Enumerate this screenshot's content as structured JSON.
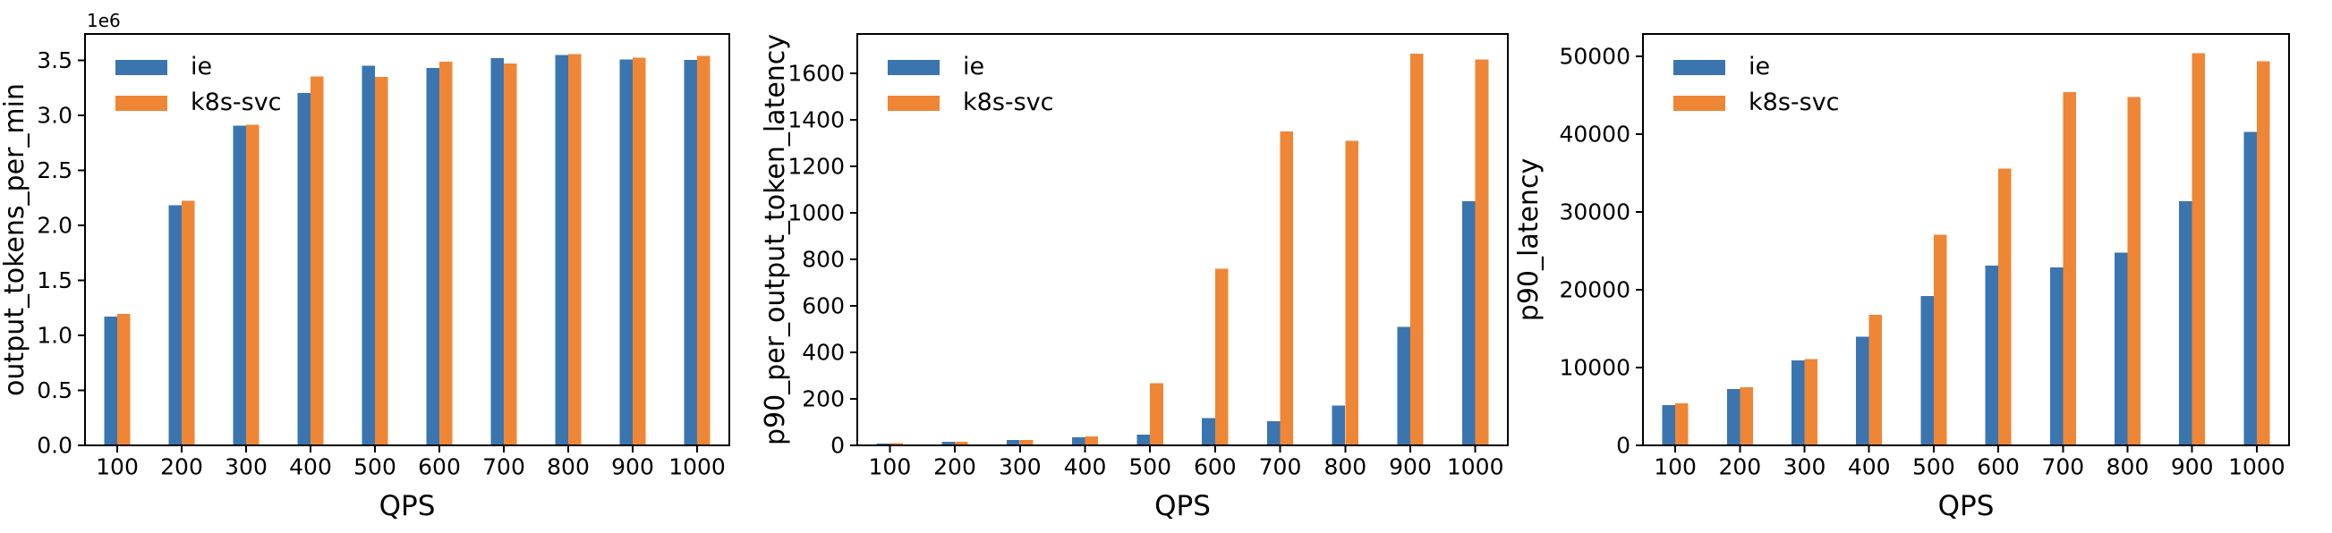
{
  "figure": {
    "background": "#ffffff",
    "text_color": "#000000",
    "spine_color": "#000000",
    "series_colors": {
      "ie": "#3b75af",
      "k8s-svc": "#ef8636"
    }
  },
  "chart_data": [
    {
      "type": "bar",
      "title": "",
      "xlabel": "QPS",
      "ylabel": "output_tokens_per_min",
      "y_offset_text": "1e6",
      "categories": [
        "100",
        "200",
        "300",
        "400",
        "500",
        "600",
        "700",
        "800",
        "900",
        "1000"
      ],
      "series": [
        {
          "name": "ie",
          "values": [
            1170000,
            2185000,
            2905000,
            3205000,
            3450000,
            3430000,
            3520000,
            3550000,
            3510000,
            3505000
          ]
        },
        {
          "name": "k8s-svc",
          "values": [
            1195000,
            2225000,
            2915000,
            3355000,
            3350000,
            3487000,
            3470000,
            3558000,
            3525000,
            3540000
          ]
        }
      ],
      "ylim": [
        0,
        3740000
      ],
      "yticks": [
        0,
        500000,
        1000000,
        1500000,
        2000000,
        2500000,
        3000000,
        3500000
      ],
      "ytick_labels": [
        "0.0",
        "0.5",
        "1.0",
        "1.5",
        "2.0",
        "2.5",
        "3.0",
        "3.5"
      ],
      "legend": [
        "ie",
        "k8s-svc"
      ],
      "legend_position": "upper left",
      "grid": false
    },
    {
      "type": "bar",
      "title": "",
      "xlabel": "QPS",
      "ylabel": "p90_per_output_token_latency",
      "y_offset_text": "",
      "categories": [
        "100",
        "200",
        "300",
        "400",
        "500",
        "600",
        "700",
        "800",
        "900",
        "1000"
      ],
      "series": [
        {
          "name": "ie",
          "values": [
            8,
            16,
            23,
            34,
            47,
            117,
            103,
            172,
            510,
            1050
          ]
        },
        {
          "name": "k8s-svc",
          "values": [
            9,
            16,
            23,
            38,
            268,
            760,
            1350,
            1310,
            1685,
            1660
          ]
        }
      ],
      "ylim": [
        0,
        1770
      ],
      "yticks": [
        0,
        200,
        400,
        600,
        800,
        1000,
        1200,
        1400,
        1600
      ],
      "ytick_labels": [
        "0",
        "200",
        "400",
        "600",
        "800",
        "1000",
        "1200",
        "1400",
        "1600"
      ],
      "legend": [
        "ie",
        "k8s-svc"
      ],
      "legend_position": "upper left",
      "grid": false
    },
    {
      "type": "bar",
      "title": "",
      "xlabel": "QPS",
      "ylabel": "p90_latency",
      "y_offset_text": "",
      "categories": [
        "100",
        "200",
        "300",
        "400",
        "500",
        "600",
        "700",
        "800",
        "900",
        "1000"
      ],
      "series": [
        {
          "name": "ie",
          "values": [
            5200,
            7250,
            10900,
            13950,
            19200,
            23100,
            22900,
            24800,
            31400,
            40300
          ]
        },
        {
          "name": "k8s-svc",
          "values": [
            5400,
            7500,
            11100,
            16800,
            27100,
            35600,
            45400,
            44800,
            50400,
            49400
          ]
        }
      ],
      "ylim": [
        0,
        52900
      ],
      "yticks": [
        0,
        10000,
        20000,
        30000,
        40000,
        50000
      ],
      "ytick_labels": [
        "0",
        "10000",
        "20000",
        "30000",
        "40000",
        "50000"
      ],
      "legend": [
        "ie",
        "k8s-svc"
      ],
      "legend_position": "upper left",
      "grid": false
    }
  ]
}
